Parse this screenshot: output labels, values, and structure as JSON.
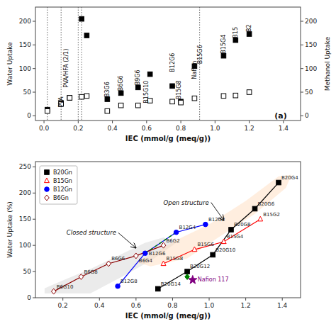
{
  "chart_data": [
    {
      "type": "scatter",
      "xlabel": "IEC (mmol/g (meq/g))",
      "ylabel": "Water Uptake",
      "y2label": "Methanol Uptake",
      "xlim": [
        -0.05,
        1.5
      ],
      "ylim": [
        -10,
        230
      ],
      "y2lim": [
        -10,
        230
      ],
      "xticks": [
        {
          "value": 0,
          "label": "0.0"
        },
        0.2,
        0.4,
        0.6,
        0.8,
        {
          "value": 1,
          "label": "1.0"
        },
        1.2,
        1.4
      ],
      "yticks": [
        0,
        50,
        100,
        150,
        200
      ],
      "y2ticks": [
        0,
        50,
        100,
        150,
        200
      ],
      "grid": false,
      "series": [
        {
          "x": [
            0.02,
            0.1,
            0.15,
            0.22,
            0.25,
            0.37,
            0.45,
            0.55,
            0.62,
            0.75,
            0.8,
            0.88,
            1.05,
            1.12,
            1.2
          ],
          "values": [
            13,
            27,
            38,
            205,
            170,
            35,
            48,
            60,
            88,
            63,
            30,
            105,
            127,
            160,
            173
          ],
          "color": "black",
          "marker": "square"
        },
        {
          "x": [
            0.02,
            0.1,
            0.15,
            0.22,
            0.25,
            0.37,
            0.45,
            0.55,
            0.62,
            0.75,
            0.8,
            0.88,
            1.05,
            1.12,
            1.2
          ],
          "values": [
            10,
            25,
            38,
            40,
            42,
            10,
            22,
            22,
            32,
            30,
            28,
            37,
            42,
            43,
            50
          ],
          "color": "black",
          "marker": "square-open",
          "axis": "y2"
        }
      ],
      "vlines": [
        0.02,
        0.1,
        0.2,
        0.22,
        0.91
      ],
      "annotations": [
        {
          "text": "PVA",
          "x": 0.1,
          "y": 13
        },
        {
          "text": "PVA/HFA (2/1)",
          "x": 0.13,
          "y": 55
        },
        {
          "text": "B3G6",
          "x": 0.37,
          "y": 35
        },
        {
          "text": "B6G6",
          "x": 0.45,
          "y": 48
        },
        {
          "text": "B9G6",
          "x": 0.55,
          "y": 60
        },
        {
          "text": "B15G10",
          "x": 0.6,
          "y": 22
        },
        {
          "text": "B12G6",
          "x": 0.75,
          "y": 88
        },
        {
          "text": "B15G8",
          "x": 0.79,
          "y": 30
        },
        {
          "text": "Nafion",
          "x": 0.88,
          "y": 73
        },
        {
          "text": "B15G6",
          "x": 0.915,
          "y": 105
        },
        {
          "text": "B15G4",
          "x": 1.05,
          "y": 127
        },
        {
          "text": "B15",
          "x": 1.12,
          "y": 160
        },
        {
          "text": "B2",
          "x": 1.2,
          "y": 173
        }
      ],
      "panel_label": {
        "text": "(a)",
        "x": 1.42,
        "y": -5
      }
    },
    {
      "type": "line",
      "xlabel": "IEC (mmol/g (meq/g))",
      "ylabel": "Water Uptake (%)",
      "xlim": [
        0.05,
        1.5
      ],
      "ylim": [
        0,
        260
      ],
      "xticks": [
        0.2,
        0.4,
        0.6,
        0.8,
        {
          "value": 1,
          "label": "1.0"
        },
        1.2,
        1.4
      ],
      "yticks": [
        0,
        50,
        100,
        150,
        200,
        250
      ],
      "grid": false,
      "legend": "upper left",
      "regions": [
        {
          "x": [
            0.1,
            0.35,
            0.55,
            0.7,
            0.82,
            0.75,
            0.65,
            0.5,
            0.35,
            0.18,
            0.1
          ],
          "y": [
            8,
            8,
            45,
            75,
            105,
            115,
            105,
            80,
            55,
            30,
            18
          ],
          "color": "lightgray"
        },
        {
          "x": [
            0.68,
            0.88,
            1.05,
            1.25,
            1.42,
            1.45,
            1.38,
            1.2,
            1.0,
            0.82,
            0.7,
            0.6
          ],
          "y": [
            60,
            75,
            115,
            160,
            210,
            235,
            232,
            185,
            140,
            110,
            85,
            68
          ],
          "color": "#FFDAB9"
        }
      ],
      "series": [
        {
          "name": "B20Gn",
          "labels": [
            "B20G4",
            "B20G6",
            "B20G8",
            "B20G10",
            "B20G12",
            "B20G14"
          ],
          "x": [
            1.38,
            1.25,
            1.12,
            1.02,
            0.88,
            0.72
          ],
          "values": [
            220,
            170,
            130,
            82,
            50,
            17
          ],
          "color": "black",
          "marker": "square"
        },
        {
          "name": "B15Gn",
          "labels": [
            "B15G2",
            "B15G4",
            "B15G6",
            "B15G8"
          ],
          "x": [
            1.28,
            1.08,
            0.92,
            0.75
          ],
          "values": [
            150,
            107,
            92,
            65
          ],
          "color": "red",
          "marker": "triangle-open"
        },
        {
          "name": "B12Gn",
          "labels": [
            "B12G2",
            "B12G4",
            "B12G6",
            "B12G8"
          ],
          "x": [
            0.98,
            0.82,
            0.65,
            0.5
          ],
          "values": [
            140,
            125,
            85,
            22
          ],
          "color": "blue",
          "marker": "circle"
        },
        {
          "name": "B6Gn",
          "labels": [
            "B6G2",
            "B6G4",
            "B6G6",
            "B6G8",
            "B6G10"
          ],
          "x": [
            0.75,
            0.6,
            0.45,
            0.3,
            0.15
          ],
          "values": [
            100,
            80,
            65,
            40,
            12
          ],
          "color": "#8B0000",
          "marker": "diamond-open"
        }
      ],
      "reference_lines": [
        {
          "x": [
            0.65,
            0.82
          ],
          "y": [
            85,
            125
          ],
          "color": "green",
          "line_style": "dashed"
        }
      ],
      "points": [
        {
          "label": "Nafion 117",
          "x": 0.91,
          "y": 34,
          "color": "purple",
          "marker": "star"
        },
        {
          "x": 0.88,
          "y": 40,
          "color": "green",
          "marker": "diamond"
        }
      ],
      "annotations": [
        {
          "text": "Open structure",
          "x": 0.75,
          "y": 178,
          "arrow_x": 1.08,
          "arrow_y": 148
        },
        {
          "text": "Closed structure",
          "x": 0.22,
          "y": 120,
          "arrow_x": 0.6,
          "arrow_y": 95
        }
      ]
    }
  ]
}
